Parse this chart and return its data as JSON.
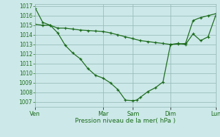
{
  "bg_color": "#cce8e8",
  "grid_color": "#99bbbb",
  "line_color": "#1a6b1a",
  "marker_color": "#1a6b1a",
  "xlabel": "Pression niveau de la mer( hPa )",
  "ylim": [
    1006.5,
    1017.2
  ],
  "yticks": [
    1007,
    1008,
    1009,
    1010,
    1011,
    1012,
    1013,
    1014,
    1015,
    1016,
    1017
  ],
  "xtick_labels": [
    "Ven",
    "Mar",
    "Sam",
    "Dim",
    "Lun"
  ],
  "xtick_positions": [
    0,
    9,
    13,
    18,
    24
  ],
  "line1_x": [
    0,
    1,
    2,
    3,
    4,
    5,
    6,
    7,
    8,
    9,
    10,
    11,
    12,
    13,
    13.5,
    14,
    15,
    16,
    17,
    18,
    19,
    20,
    21,
    22,
    23,
    24
  ],
  "line1_y": [
    1016.8,
    1015.3,
    1015.0,
    1014.2,
    1012.9,
    1012.1,
    1011.5,
    1010.5,
    1009.8,
    1009.5,
    1009.0,
    1008.3,
    1007.2,
    1007.15,
    1007.2,
    1007.5,
    1008.1,
    1008.5,
    1009.1,
    1013.0,
    1013.1,
    1013.0,
    1014.1,
    1013.4,
    1013.8,
    1016.0
  ],
  "line2_x": [
    0,
    1,
    2,
    3,
    4,
    5,
    6,
    7,
    8,
    9,
    10,
    11,
    12,
    13,
    14,
    15,
    16,
    17,
    18,
    19,
    20,
    21,
    22,
    23,
    24
  ],
  "line2_y": [
    1015.1,
    1015.0,
    1015.0,
    1014.7,
    1014.7,
    1014.6,
    1014.5,
    1014.45,
    1014.4,
    1014.35,
    1014.2,
    1014.0,
    1013.8,
    1013.6,
    1013.4,
    1013.3,
    1013.2,
    1013.1,
    1013.0,
    1013.05,
    1013.1,
    1015.5,
    1015.8,
    1016.0,
    1016.2
  ],
  "xlim": [
    0,
    24
  ]
}
